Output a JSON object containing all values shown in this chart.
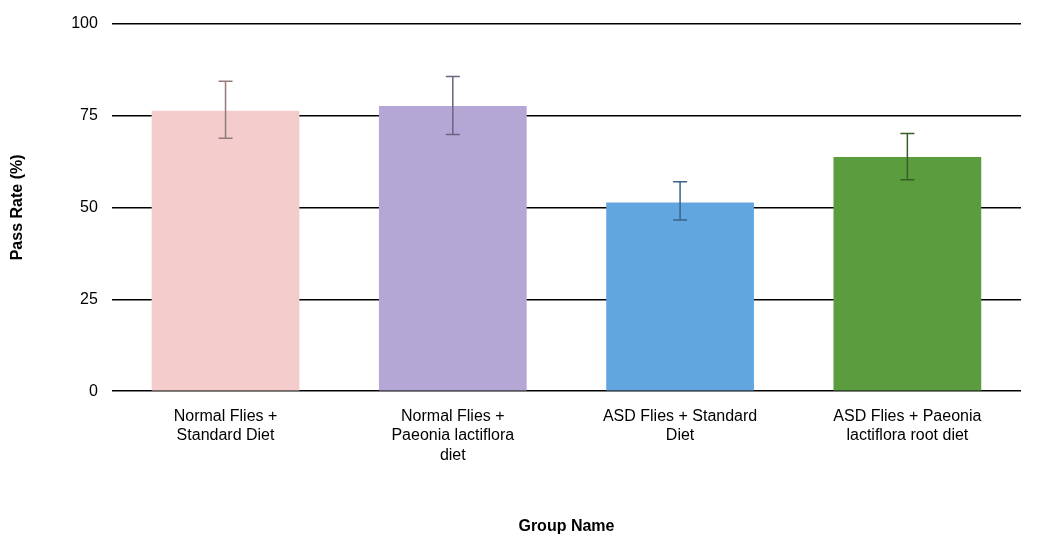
{
  "chart_data": {
    "type": "bar",
    "xlabel": "Group Name",
    "ylabel": "Pass Rate (%)",
    "categories": [
      "Normal Flies + Standard Diet",
      "Normal Flies + Paeonia lactiflora diet",
      "ASD Flies + Standard Diet",
      "ASD Flies + Paeonia lactiflora root diet"
    ],
    "values": [
      76.3,
      77.6,
      51.3,
      63.7
    ],
    "colors": [
      "#f4cccc",
      "#b4a7d6",
      "#62a6e0",
      "#5b9c3e"
    ],
    "errors": [
      [
        68.8,
        84.3
      ],
      [
        69.8,
        85.6
      ],
      [
        46.6,
        57.0
      ],
      [
        57.5,
        70.1
      ]
    ],
    "ylim": [
      0,
      100
    ],
    "yticks": [
      0,
      25,
      50,
      75,
      100
    ],
    "grid": "y",
    "legend": false
  }
}
